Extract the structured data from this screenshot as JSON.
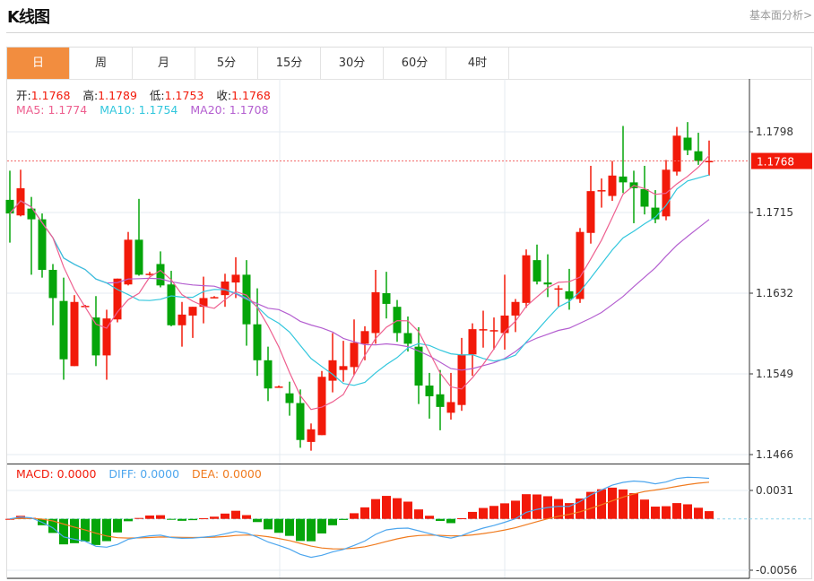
{
  "header": {
    "title": "K线图",
    "link": "基本面分析>"
  },
  "tabs": [
    {
      "label": "日",
      "active": true
    },
    {
      "label": "周"
    },
    {
      "label": "月"
    },
    {
      "label": "5分"
    },
    {
      "label": "15分"
    },
    {
      "label": "30分"
    },
    {
      "label": "60分"
    },
    {
      "label": "4时"
    }
  ],
  "ohlc_legend": {
    "open_label": "开:",
    "open": "1.1768",
    "high_label": "高:",
    "high": "1.1789",
    "low_label": "低:",
    "low": "1.1753",
    "close_label": "收:",
    "close": "1.1768"
  },
  "ma_legend": {
    "ma5": "MA5: 1.1774",
    "ma10": "MA10: 1.1754",
    "ma20": "MA20: 1.1708"
  },
  "macd_legend": {
    "macd": "MACD: 0.0000",
    "diff": "DIFF: 0.0000",
    "dea": "DEA: 0.0000"
  },
  "colors": {
    "up": "#f21a0a",
    "down": "#05a50a",
    "ma5": "#ee5f8f",
    "ma10": "#33c7dd",
    "ma20": "#b45fd0",
    "diff": "#4da6ee",
    "dea": "#f07b1f",
    "active_tab": "#f28d3f"
  },
  "chart_data": [
    {
      "type": "candlestick",
      "y_ticks": [
        "1.1798",
        "1.1715",
        "1.1632",
        "1.1549",
        "1.1466"
      ],
      "ylim": [
        1.1466,
        1.1798
      ],
      "last_price": "1.1768",
      "grid": true,
      "candles": [
        [
          1.1728,
          1.1758,
          1.1684,
          1.1714
        ],
        [
          1.1712,
          1.1759,
          1.1711,
          1.174
        ],
        [
          1.1719,
          1.1731,
          1.1651,
          1.1708
        ],
        [
          1.1708,
          1.1714,
          1.1648,
          1.1656
        ],
        [
          1.1656,
          1.1662,
          1.1599,
          1.1627
        ],
        [
          1.1624,
          1.1648,
          1.1543,
          1.1564
        ],
        [
          1.1557,
          1.163,
          1.1557,
          1.1623
        ],
        [
          1.1619,
          1.162,
          1.1618,
          1.1619
        ],
        [
          1.1607,
          1.1629,
          1.1557,
          1.1568
        ],
        [
          1.1568,
          1.1615,
          1.1543,
          1.1606
        ],
        [
          1.1605,
          1.1647,
          1.1602,
          1.1647
        ],
        [
          1.1641,
          1.1695,
          1.164,
          1.1687
        ],
        [
          1.1687,
          1.1729,
          1.165,
          1.1651
        ],
        [
          1.1652,
          1.1654,
          1.165,
          1.1652
        ],
        [
          1.1662,
          1.1675,
          1.1638,
          1.164
        ],
        [
          1.1641,
          1.1655,
          1.1598,
          1.1599
        ],
        [
          1.1599,
          1.1623,
          1.1577,
          1.161
        ],
        [
          1.1609,
          1.1618,
          1.1586,
          1.1618
        ],
        [
          1.1618,
          1.1649,
          1.1601,
          1.1627
        ],
        [
          1.1628,
          1.1629,
          1.1627,
          1.1628
        ],
        [
          1.163,
          1.1652,
          1.1618,
          1.1644
        ],
        [
          1.1643,
          1.1669,
          1.1627,
          1.1651
        ],
        [
          1.1651,
          1.1666,
          1.1578,
          1.16
        ],
        [
          1.16,
          1.1637,
          1.1547,
          1.1563
        ],
        [
          1.1563,
          1.1577,
          1.1521,
          1.1534
        ],
        [
          1.1536,
          1.1537,
          1.1535,
          1.1536
        ],
        [
          1.1529,
          1.1541,
          1.1506,
          1.1519
        ],
        [
          1.1519,
          1.1533,
          1.1473,
          1.1481
        ],
        [
          1.1479,
          1.1498,
          1.147,
          1.1492
        ],
        [
          1.1486,
          1.1552,
          1.1486,
          1.1546
        ],
        [
          1.1542,
          1.1591,
          1.153,
          1.1563
        ],
        [
          1.1553,
          1.1583,
          1.1541,
          1.1557
        ],
        [
          1.1556,
          1.1605,
          1.1548,
          1.1581
        ],
        [
          1.158,
          1.1598,
          1.1563,
          1.1593
        ],
        [
          1.1591,
          1.1656,
          1.158,
          1.1633
        ],
        [
          1.1632,
          1.1654,
          1.1606,
          1.1621
        ],
        [
          1.1618,
          1.1625,
          1.1582,
          1.1591
        ],
        [
          1.1591,
          1.1608,
          1.1572,
          1.158
        ],
        [
          1.1577,
          1.1597,
          1.1518,
          1.1537
        ],
        [
          1.1537,
          1.155,
          1.1503,
          1.1526
        ],
        [
          1.1528,
          1.1553,
          1.1491,
          1.1515
        ],
        [
          1.1509,
          1.155,
          1.1502,
          1.152
        ],
        [
          1.1517,
          1.1586,
          1.1511,
          1.1569
        ],
        [
          1.1569,
          1.1601,
          1.1547,
          1.1595
        ],
        [
          1.1595,
          1.1614,
          1.1576,
          1.1595
        ],
        [
          1.1594,
          1.1607,
          1.1574,
          1.1594
        ],
        [
          1.1591,
          1.1651,
          1.1574,
          1.1609
        ],
        [
          1.1609,
          1.1626,
          1.1592,
          1.1623
        ],
        [
          1.1622,
          1.1677,
          1.1617,
          1.1671
        ],
        [
          1.1666,
          1.1682,
          1.1641,
          1.1644
        ],
        [
          1.1643,
          1.1672,
          1.1628,
          1.1641
        ],
        [
          1.1636,
          1.164,
          1.1618,
          1.1637
        ],
        [
          1.1634,
          1.1657,
          1.1615,
          1.1626
        ],
        [
          1.1626,
          1.1699,
          1.1622,
          1.1695
        ],
        [
          1.1694,
          1.1763,
          1.1683,
          1.1737
        ],
        [
          1.1738,
          1.175,
          1.172,
          1.1738
        ],
        [
          1.1732,
          1.1768,
          1.1727,
          1.1753
        ],
        [
          1.1752,
          1.1804,
          1.1735,
          1.1746
        ],
        [
          1.1746,
          1.1758,
          1.1704,
          1.174
        ],
        [
          1.1739,
          1.1763,
          1.1713,
          1.1721
        ],
        [
          1.172,
          1.1738,
          1.1704,
          1.1708
        ],
        [
          1.1711,
          1.1769,
          1.1707,
          1.1759
        ],
        [
          1.1757,
          1.1803,
          1.1753,
          1.1794
        ],
        [
          1.1792,
          1.1808,
          1.1774,
          1.1779
        ],
        [
          1.1778,
          1.1797,
          1.1764,
          1.1768
        ],
        [
          1.1768,
          1.1789,
          1.1753,
          1.1768
        ]
      ],
      "moving_averages": [
        "MA5",
        "MA10",
        "MA20"
      ]
    },
    {
      "type": "macd",
      "y_ticks": [
        "0.0031",
        "-0.0056"
      ],
      "ylim": [
        -0.0056,
        0.0031
      ],
      "series": [
        "MACD",
        "DIFF",
        "DEA"
      ]
    }
  ]
}
